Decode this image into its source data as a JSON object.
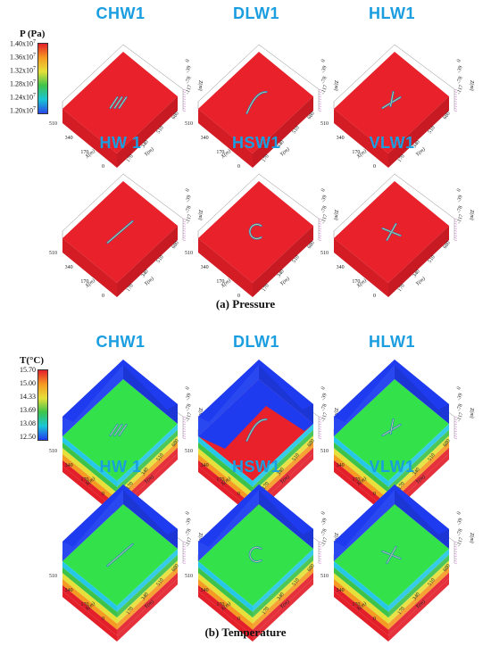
{
  "sections": [
    {
      "key": "pressure",
      "caption": "(a) Pressure",
      "legend": {
        "title": "P (Pa)",
        "ticks": [
          "1.40x10^7",
          "1.36x10^7",
          "1.32x10^7",
          "1.28x10^7",
          "1.24x10^7",
          "1.20x10^7"
        ],
        "colors": [
          "#e3202a",
          "#f59a23",
          "#e6e03a",
          "#3ec34a",
          "#19c6d6",
          "#2b48e6"
        ]
      },
      "panels": [
        {
          "label": "CHW1",
          "shape": "chw"
        },
        {
          "label": "DLW1",
          "shape": "dlw"
        },
        {
          "label": "HLW1",
          "shape": "hlw"
        },
        {
          "label": "HW 1",
          "shape": "hw"
        },
        {
          "label": "HSW1",
          "shape": "hsw"
        },
        {
          "label": "VLW1",
          "shape": "vlw"
        }
      ]
    },
    {
      "key": "temperature",
      "caption": "(b) Temperature",
      "legend": {
        "title": "T(°C)",
        "ticks": [
          "15.70",
          "15.00",
          "14.33",
          "13.69",
          "13.08",
          "12.50"
        ],
        "colors": [
          "#e3202a",
          "#f59a23",
          "#e6e03a",
          "#3ec34a",
          "#19c6d6",
          "#1f3bf0"
        ]
      },
      "panels": [
        {
          "label": "CHW1",
          "shape": "chw"
        },
        {
          "label": "DLW1",
          "shape": "dlw"
        },
        {
          "label": "HLW1",
          "shape": "hlw"
        },
        {
          "label": "HW 1",
          "shape": "hw"
        },
        {
          "label": "HSW1",
          "shape": "hsw"
        },
        {
          "label": "VLW1",
          "shape": "vlw"
        }
      ]
    }
  ],
  "axes": {
    "x_label": "X(m)",
    "y_label": "Y(m)",
    "z_label": "Z(m)",
    "x_ticks": [
      "510",
      "340",
      "170",
      "0"
    ],
    "y_ticks": [
      "0",
      "170",
      "340",
      "510",
      "680"
    ],
    "z_ticks": [
      "0",
      "-39",
      "-78",
      "-117"
    ]
  },
  "colors": {
    "red": "#e8212b",
    "blue": "#1f3bf0",
    "green": "#33e14a",
    "label": "#1a9ee0"
  }
}
